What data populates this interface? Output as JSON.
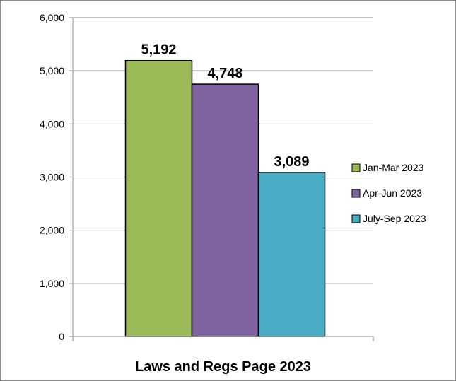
{
  "chart_data": {
    "type": "bar",
    "categories": [
      "Laws and Regs Page 2023"
    ],
    "series": [
      {
        "name": "Jan-Mar 2023",
        "values": [
          5192
        ],
        "label": "5,192",
        "color": "#9bbb59"
      },
      {
        "name": "Apr-Jun 2023",
        "values": [
          4748
        ],
        "label": "4,748",
        "color": "#8064a2"
      },
      {
        "name": "July-Sep 2023",
        "values": [
          3089
        ],
        "label": "3,089",
        "color": "#4bacc6"
      }
    ],
    "title": "",
    "xlabel": "",
    "ylabel": "",
    "ylim": [
      0,
      6000
    ],
    "yticks": [
      0,
      1000,
      2000,
      3000,
      4000,
      5000,
      6000
    ],
    "ytick_labels": [
      "0",
      "1,000",
      "2,000",
      "3,000",
      "4,000",
      "5,000",
      "6,000"
    ],
    "grid": true,
    "legend_position": "right"
  }
}
